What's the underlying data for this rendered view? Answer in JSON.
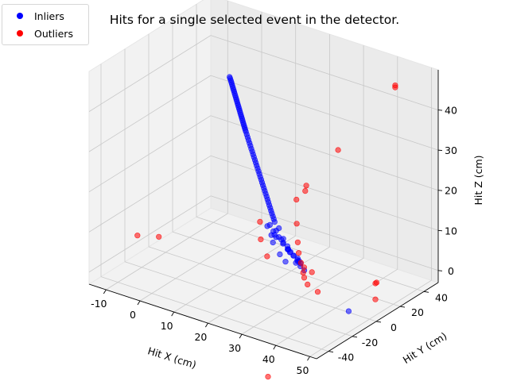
{
  "chart_data": {
    "type": "scatter3d",
    "title": "Hits for a single selected event in the detector.",
    "xlabel": "Hit X (cm)",
    "ylabel": "Hit Y (cm)",
    "zlabel": "Hit Z (cm)",
    "xlim": [
      -15,
      52
    ],
    "ylim": [
      -50,
      52
    ],
    "zlim": [
      -3,
      50
    ],
    "xticks": [
      -10,
      0,
      10,
      20,
      30,
      40,
      50
    ],
    "yticks": [
      -40,
      -20,
      0,
      20,
      40
    ],
    "zticks": [
      0,
      10,
      20,
      30,
      40
    ],
    "grid": true,
    "legend_position": "top-left",
    "series": [
      {
        "name": "Inliers",
        "color": "#0000ff",
        "points": [
          [
            6.2,
            7.5,
            43.8
          ],
          [
            6.4,
            7.4,
            43.5
          ],
          [
            6.6,
            7.3,
            43.1
          ],
          [
            6.8,
            7.2,
            42.7
          ],
          [
            7,
            7.1,
            42.3
          ],
          [
            7.2,
            7,
            41.9
          ],
          [
            7.4,
            6.9,
            41.5
          ],
          [
            7.6,
            6.8,
            41.1
          ],
          [
            7.8,
            6.7,
            40.7
          ],
          [
            8,
            6.6,
            40.3
          ],
          [
            8.2,
            6.5,
            39.9
          ],
          [
            8.4,
            6.4,
            39.5
          ],
          [
            8.6,
            6.3,
            39.1
          ],
          [
            8.8,
            6.2,
            38.7
          ],
          [
            9,
            6.1,
            38.3
          ],
          [
            9.2,
            6,
            37.9
          ],
          [
            9.4,
            5.9,
            37.5
          ],
          [
            9.6,
            5.8,
            37.1
          ],
          [
            9.8,
            5.7,
            36.7
          ],
          [
            10,
            5.6,
            36.3
          ],
          [
            10.2,
            5.5,
            35.9
          ],
          [
            10.4,
            5.4,
            35.5
          ],
          [
            10.6,
            5.3,
            35.1
          ],
          [
            10.8,
            5.2,
            34.7
          ],
          [
            11,
            5.1,
            34.3
          ],
          [
            11.2,
            5,
            33.9
          ],
          [
            11.4,
            4.9,
            33.5
          ],
          [
            11.6,
            4.8,
            33.1
          ],
          [
            11.8,
            4.7,
            32.7
          ],
          [
            12,
            4.6,
            32.3
          ],
          [
            12.3,
            4.5,
            31.7
          ],
          [
            12.6,
            4.4,
            31.1
          ],
          [
            12.9,
            4.3,
            30.5
          ],
          [
            13.2,
            4.2,
            29.9
          ],
          [
            13.5,
            4.1,
            29.3
          ],
          [
            13.8,
            4,
            28.7
          ],
          [
            14.1,
            3.9,
            28.1
          ],
          [
            14.4,
            3.8,
            27.5
          ],
          [
            14.7,
            3.7,
            26.9
          ],
          [
            15,
            3.6,
            26.3
          ],
          [
            15.3,
            3.5,
            25.7
          ],
          [
            15.6,
            3.4,
            25.1
          ],
          [
            15.9,
            3.3,
            24.5
          ],
          [
            16.2,
            3.2,
            23.9
          ],
          [
            16.5,
            3.1,
            23.3
          ],
          [
            16.8,
            3,
            22.7
          ],
          [
            17.1,
            2.9,
            22.1
          ],
          [
            17.4,
            2.8,
            21.5
          ],
          [
            17.7,
            2.7,
            20.9
          ],
          [
            18,
            2.6,
            20.3
          ],
          [
            18.3,
            2.5,
            19.7
          ],
          [
            18.6,
            2.4,
            19.1
          ],
          [
            18.9,
            2.3,
            18.5
          ],
          [
            19.2,
            2.2,
            17.9
          ],
          [
            19.5,
            2.1,
            17.3
          ],
          [
            19.8,
            2,
            16.7
          ],
          [
            20.1,
            1.9,
            16.1
          ],
          [
            20.4,
            1.8,
            15.5
          ],
          [
            20.7,
            1.7,
            14.9
          ],
          [
            21,
            1.6,
            14.3
          ],
          [
            21.3,
            1.5,
            13.7
          ],
          [
            21.6,
            1.4,
            13.1
          ],
          [
            19.5,
            1.2,
            11.5
          ],
          [
            20.5,
            0.5,
            12.2
          ],
          [
            21,
            2,
            10.5
          ],
          [
            22,
            1.5,
            11
          ],
          [
            22.5,
            0,
            9.8
          ],
          [
            23,
            1,
            12
          ],
          [
            23.5,
            -0.5,
            10.2
          ],
          [
            24,
            1.8,
            9.5
          ],
          [
            24.5,
            0.2,
            8.7
          ],
          [
            25,
            -1,
            9.3
          ],
          [
            25.5,
            1,
            8.2
          ],
          [
            26,
            -0.3,
            7.8
          ],
          [
            26.5,
            0.8,
            7.1
          ],
          [
            27,
            -1.2,
            7.5
          ],
          [
            27.5,
            0.3,
            6.5
          ],
          [
            28,
            -0.8,
            6.9
          ],
          [
            28.5,
            1.1,
            6
          ],
          [
            29,
            -0.2,
            5.6
          ],
          [
            29.5,
            0.6,
            5.1
          ],
          [
            30,
            -0.9,
            4.8
          ],
          [
            25.2,
            2.4,
            7
          ],
          [
            26.8,
            -2,
            8.4
          ],
          [
            28.2,
            1.6,
            5.4
          ],
          [
            29.8,
            -1.5,
            6.2
          ],
          [
            24.2,
            -1.6,
            6.3
          ],
          [
            23,
            3,
            8.8
          ],
          [
            27.6,
            2.2,
            4.4
          ],
          [
            26.2,
            -2.6,
            5.2
          ],
          [
            31,
            -0.5,
            4
          ],
          [
            21.8,
            -0.6,
            8.4
          ],
          [
            20.2,
            2.6,
            9.2
          ],
          [
            22.8,
            -2.2,
            10.9
          ],
          [
            46,
            -6,
            -1
          ]
        ]
      },
      {
        "name": "Outliers",
        "color": "#ff0000",
        "points": [
          [
            46,
            33,
            48
          ],
          [
            46,
            33,
            47.5
          ],
          [
            45,
            -12,
            40
          ],
          [
            30,
            4,
            24
          ],
          [
            29,
            6,
            22
          ],
          [
            25,
            10,
            18
          ],
          [
            30,
            -4,
            16
          ],
          [
            15.5,
            6.5,
            10.5
          ],
          [
            18,
            0,
            8
          ],
          [
            22,
            -6,
            6
          ],
          [
            31,
            -6,
            12
          ],
          [
            32,
            -8,
            10
          ],
          [
            33,
            -9,
            8
          ],
          [
            34,
            -10,
            6
          ],
          [
            34.5,
            -10.5,
            5
          ],
          [
            35,
            -12,
            8
          ],
          [
            38,
            -14,
            8
          ],
          [
            36,
            -12,
            4
          ],
          [
            39,
            -12,
            3
          ],
          [
            50,
            5,
            5
          ],
          [
            50,
            6,
            5
          ],
          [
            50,
            5,
            1
          ],
          [
            -12,
            -18,
            4
          ],
          [
            -5,
            -20,
            6
          ],
          [
            37,
            -48,
            -12
          ]
        ]
      }
    ]
  },
  "legend": {
    "inliers_label": "Inliers",
    "outliers_label": "Outliers"
  }
}
